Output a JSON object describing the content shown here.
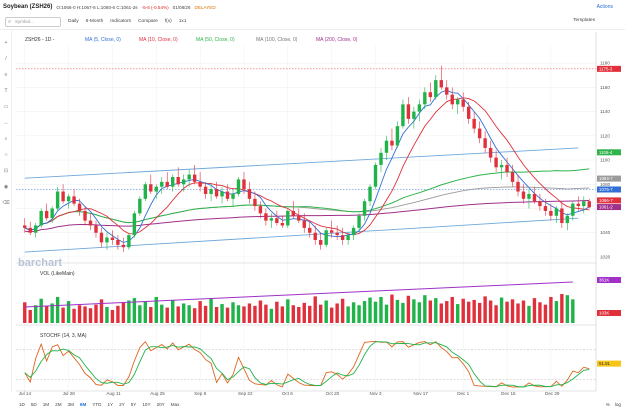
{
  "header": {
    "title": "Soybean (ZSH26)",
    "ohlc": "O:1066-0 H:1067-6 L:1060-6 C:1061-2s",
    "change": "-5-6 (-0.54%)",
    "time": "01/08/26",
    "delayed": "DELAYED",
    "actions": "Actions"
  },
  "toolbar": {
    "symbol_placeholder": "Symbol...",
    "items": [
      "Daily",
      "6-Month",
      "Indicators",
      "Compare",
      "f(x)",
      "1x1"
    ],
    "templates": "Templates"
  },
  "legend": {
    "symbol": "ZSH26 - 1D -",
    "ma": [
      {
        "label": "MA (5, Close, 0)",
        "color": "#2f6fd6"
      },
      {
        "label": "MA (10, Close, 0)",
        "color": "#e0303c"
      },
      {
        "label": "MA (50, Close, 0)",
        "color": "#2fb34a"
      },
      {
        "label": "MA (100, Close, 0)",
        "color": "#9a9a9a"
      },
      {
        "label": "MA (200, Close, 0)",
        "color": "#a0308c"
      }
    ],
    "vol": "VOL (LikeMain)",
    "stoch": "STOCHF (14, 3, MA)"
  },
  "watermark": "barchart",
  "colors": {
    "up": "#1fb34a",
    "down": "#e0303c",
    "trend": "#6fa8dc",
    "stochFast": "#e0651f",
    "stochSlow": "#1fb34a",
    "volMA": "#a030c8"
  },
  "chart_data": {
    "type": "candlestick",
    "dates_labels": [
      "Jul 14",
      "Jul 28",
      "Aug 11",
      "Aug 25",
      "Sep 8",
      "Sep 22",
      "Oct 6",
      "Oct 20",
      "Nov 3",
      "Nov 17",
      "Dec 1",
      "Dec 15",
      "Dec 29"
    ],
    "ylim": [
      1015,
      1195
    ],
    "yticks": [
      1020,
      1040,
      1060,
      1080,
      1100,
      1120,
      1140,
      1160,
      1180
    ],
    "ohlc": [
      [
        1046,
        1052,
        1040,
        1044
      ],
      [
        1044,
        1049,
        1038,
        1040
      ],
      [
        1040,
        1048,
        1036,
        1046
      ],
      [
        1046,
        1060,
        1044,
        1058
      ],
      [
        1058,
        1064,
        1050,
        1052
      ],
      [
        1052,
        1062,
        1048,
        1060
      ],
      [
        1060,
        1078,
        1058,
        1074
      ],
      [
        1074,
        1080,
        1064,
        1066
      ],
      [
        1066,
        1072,
        1060,
        1070
      ],
      [
        1070,
        1076,
        1062,
        1064
      ],
      [
        1064,
        1068,
        1054,
        1058
      ],
      [
        1058,
        1062,
        1046,
        1050
      ],
      [
        1050,
        1056,
        1042,
        1046
      ],
      [
        1046,
        1050,
        1036,
        1040
      ],
      [
        1040,
        1044,
        1028,
        1032
      ],
      [
        1032,
        1040,
        1026,
        1036
      ],
      [
        1036,
        1042,
        1030,
        1034
      ],
      [
        1034,
        1038,
        1026,
        1030
      ],
      [
        1030,
        1036,
        1024,
        1028
      ],
      [
        1028,
        1040,
        1026,
        1038
      ],
      [
        1038,
        1058,
        1036,
        1056
      ],
      [
        1056,
        1070,
        1054,
        1068
      ],
      [
        1068,
        1082,
        1066,
        1080
      ],
      [
        1080,
        1088,
        1072,
        1074
      ],
      [
        1074,
        1080,
        1068,
        1078
      ],
      [
        1078,
        1086,
        1072,
        1082
      ],
      [
        1082,
        1090,
        1076,
        1078
      ],
      [
        1078,
        1088,
        1074,
        1086
      ],
      [
        1086,
        1094,
        1078,
        1080
      ],
      [
        1080,
        1088,
        1074,
        1084
      ],
      [
        1084,
        1092,
        1078,
        1088
      ],
      [
        1088,
        1096,
        1080,
        1082
      ],
      [
        1082,
        1090,
        1074,
        1078
      ],
      [
        1078,
        1082,
        1068,
        1072
      ],
      [
        1072,
        1080,
        1066,
        1076
      ],
      [
        1076,
        1082,
        1068,
        1070
      ],
      [
        1070,
        1078,
        1064,
        1074
      ],
      [
        1074,
        1080,
        1066,
        1068
      ],
      [
        1068,
        1076,
        1062,
        1072
      ],
      [
        1072,
        1086,
        1070,
        1084
      ],
      [
        1084,
        1090,
        1072,
        1076
      ],
      [
        1076,
        1082,
        1064,
        1068
      ],
      [
        1068,
        1074,
        1058,
        1062
      ],
      [
        1062,
        1066,
        1052,
        1056
      ],
      [
        1056,
        1060,
        1046,
        1050
      ],
      [
        1050,
        1056,
        1044,
        1052
      ],
      [
        1052,
        1058,
        1046,
        1048
      ],
      [
        1048,
        1054,
        1044,
        1046
      ],
      [
        1046,
        1060,
        1044,
        1058
      ],
      [
        1058,
        1066,
        1052,
        1054
      ],
      [
        1054,
        1060,
        1048,
        1050
      ],
      [
        1050,
        1056,
        1040,
        1044
      ],
      [
        1044,
        1050,
        1036,
        1040
      ],
      [
        1040,
        1046,
        1030,
        1034
      ],
      [
        1034,
        1040,
        1026,
        1030
      ],
      [
        1030,
        1044,
        1028,
        1042
      ],
      [
        1042,
        1050,
        1036,
        1040
      ],
      [
        1040,
        1046,
        1034,
        1038
      ],
      [
        1038,
        1044,
        1030,
        1034
      ],
      [
        1034,
        1040,
        1030,
        1038
      ],
      [
        1038,
        1046,
        1034,
        1044
      ],
      [
        1044,
        1056,
        1040,
        1054
      ],
      [
        1054,
        1068,
        1050,
        1066
      ],
      [
        1066,
        1080,
        1062,
        1078
      ],
      [
        1078,
        1098,
        1076,
        1096
      ],
      [
        1096,
        1110,
        1090,
        1106
      ],
      [
        1106,
        1120,
        1100,
        1116
      ],
      [
        1116,
        1126,
        1108,
        1112
      ],
      [
        1112,
        1132,
        1110,
        1128
      ],
      [
        1128,
        1150,
        1126,
        1146
      ],
      [
        1146,
        1152,
        1130,
        1134
      ],
      [
        1134,
        1144,
        1126,
        1140
      ],
      [
        1140,
        1150,
        1132,
        1146
      ],
      [
        1146,
        1160,
        1142,
        1156
      ],
      [
        1156,
        1164,
        1148,
        1152
      ],
      [
        1152,
        1170,
        1150,
        1166
      ],
      [
        1166,
        1178,
        1158,
        1160
      ],
      [
        1160,
        1166,
        1150,
        1154
      ],
      [
        1154,
        1160,
        1142,
        1146
      ],
      [
        1146,
        1152,
        1138,
        1150
      ],
      [
        1150,
        1156,
        1140,
        1144
      ],
      [
        1144,
        1148,
        1130,
        1134
      ],
      [
        1134,
        1140,
        1122,
        1126
      ],
      [
        1126,
        1132,
        1114,
        1118
      ],
      [
        1118,
        1124,
        1106,
        1110
      ],
      [
        1110,
        1116,
        1098,
        1102
      ],
      [
        1102,
        1108,
        1090,
        1094
      ],
      [
        1094,
        1100,
        1084,
        1096
      ],
      [
        1096,
        1102,
        1086,
        1090
      ],
      [
        1090,
        1096,
        1078,
        1082
      ],
      [
        1082,
        1088,
        1070,
        1074
      ],
      [
        1074,
        1080,
        1064,
        1068
      ],
      [
        1068,
        1076,
        1060,
        1072
      ],
      [
        1072,
        1078,
        1064,
        1066
      ],
      [
        1066,
        1072,
        1058,
        1062
      ],
      [
        1062,
        1068,
        1054,
        1058
      ],
      [
        1058,
        1064,
        1050,
        1054
      ],
      [
        1054,
        1062,
        1048,
        1060
      ],
      [
        1060,
        1066,
        1044,
        1048
      ],
      [
        1048,
        1056,
        1042,
        1054
      ],
      [
        1054,
        1066,
        1050,
        1064
      ],
      [
        1064,
        1070,
        1058,
        1062
      ],
      [
        1062,
        1070,
        1056,
        1066
      ],
      [
        1066,
        1068,
        1060,
        1061
      ]
    ],
    "volume": [
      35,
      22,
      30,
      41,
      28,
      33,
      44,
      26,
      37,
      24,
      30,
      28,
      25,
      31,
      40,
      27,
      22,
      29,
      34,
      38,
      42,
      30,
      36,
      27,
      44,
      31,
      26,
      39,
      28,
      33,
      30,
      25,
      37,
      29,
      41,
      27,
      32,
      26,
      35,
      30,
      28,
      33,
      29,
      38,
      31,
      24,
      36,
      28,
      40,
      30,
      27,
      34,
      29,
      45,
      31,
      38,
      26,
      33,
      41,
      28,
      35,
      30,
      37,
      43,
      36,
      44,
      31,
      48,
      39,
      34,
      46,
      40,
      35,
      47,
      38,
      42,
      33,
      37,
      44,
      32,
      41,
      36,
      39,
      34,
      45,
      38,
      30,
      43,
      36,
      40,
      33,
      38,
      29,
      42,
      35,
      31,
      44,
      37,
      49,
      47,
      40
    ],
    "volume_ma_end": 361,
    "volume_last": "103K",
    "stoch_levels": [
      20,
      80
    ],
    "stoch_last": "51.81",
    "price_labels": [
      {
        "value": 1175.3,
        "label": "1175-3",
        "color": "#e0303c"
      },
      {
        "value": 1106.4,
        "label": "1106-4",
        "color": "#2fb34a"
      },
      {
        "value": 1084.7,
        "label": "1084-7",
        "color": "#9a9a9a"
      },
      {
        "value": 1075.7,
        "label": "1075-7",
        "color": "#2f6fd6"
      },
      {
        "value": 1066.7,
        "label": "1066-7",
        "color": "#e0303c"
      },
      {
        "value": 1061.2,
        "label": "1061-2",
        "color": "#a0308c"
      }
    ],
    "trendlines": [
      {
        "from": [
          0,
          1085
        ],
        "to": [
          101,
          1110
        ]
      },
      {
        "from": [
          0,
          1024
        ],
        "to": [
          101,
          1052
        ]
      }
    ]
  },
  "timeframes": [
    "1D",
    "5D",
    "1M",
    "2M",
    "3M",
    "6M",
    "YTD",
    "1Y",
    "2Y",
    "5Y",
    "10Y",
    "20Y",
    "Max"
  ],
  "selected_timeframe": "6M",
  "bottom_right": [
    "%",
    "log"
  ]
}
